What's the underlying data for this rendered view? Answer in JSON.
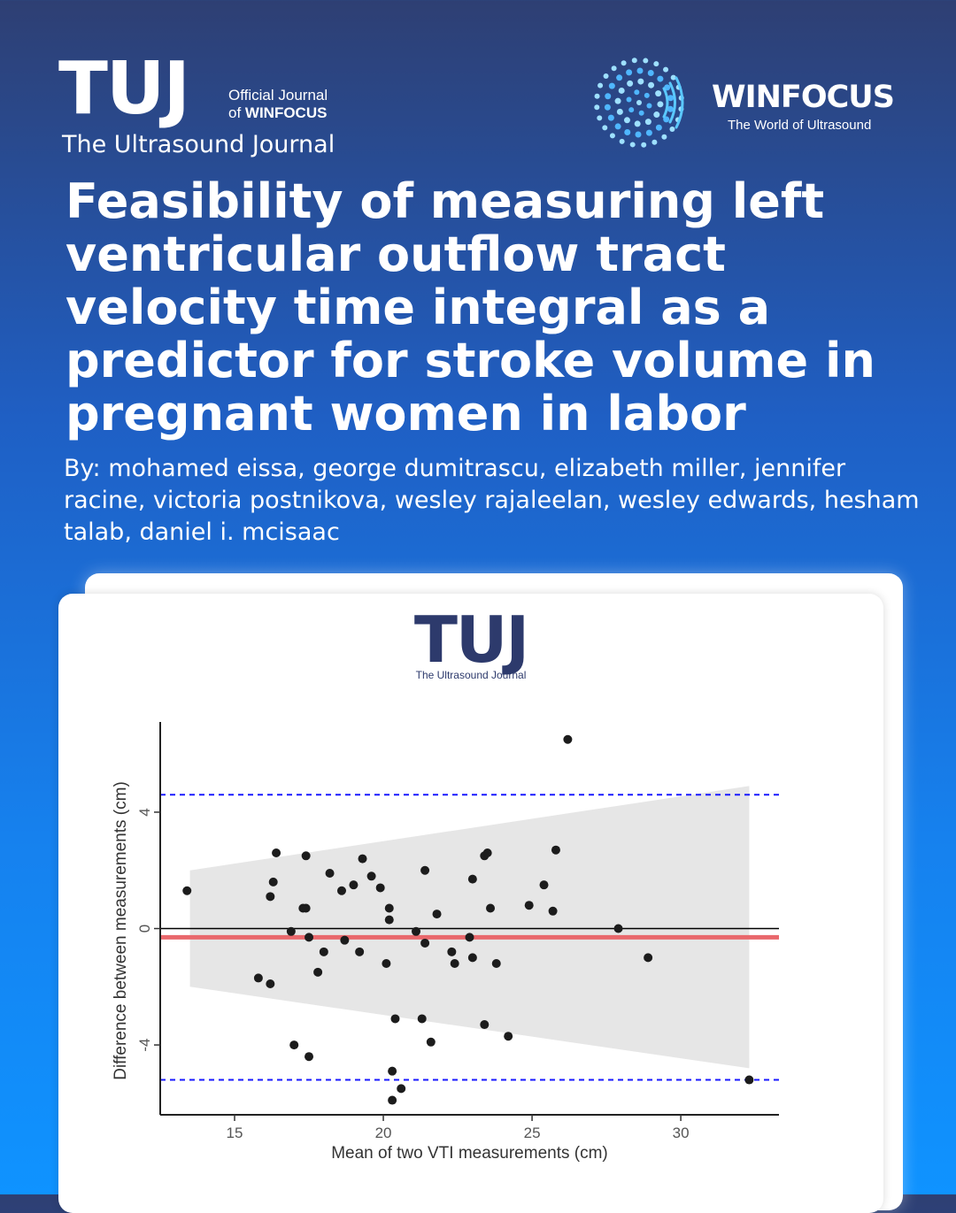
{
  "header": {
    "tuj_mark": "TUJ",
    "official_line1": "Official Journal",
    "official_line2_prefix": "of ",
    "official_line2_bold": "WINFOCUS",
    "tuj_subtitle": "The Ultrasound Journal",
    "winfocus_name": "WINFOCUS",
    "winfocus_tagline": "The World of Ultrasound"
  },
  "article": {
    "title": "Feasibility of measuring left ventricular outflow tract velocity time integral as a predictor for stroke volume in pregnant women in labor",
    "authors": "By: mohamed eissa, george dumitrascu, elizabeth miller, jennifer racine, victoria postnikova, wesley rajaleelan, wesley edwards, hesham talab, daniel i. mcisaac"
  },
  "card": {
    "logo_mark": "TUJ",
    "logo_subtitle": "The Ultrasound Journal"
  },
  "colors": {
    "loa": "#1a1aff",
    "bias": "#e9686c",
    "band": "#e6e6e6",
    "point": "#1c1c1c",
    "accent": "#2d3a6c"
  },
  "chart_data": {
    "type": "scatter",
    "title": "",
    "xlabel": "Mean of two VTI measurements (cm)",
    "ylabel": "Difference between measurements (cm)",
    "xlim": [
      12.5,
      33.3
    ],
    "ylim": [
      -6.4,
      7.1
    ],
    "xticks": [
      15,
      20,
      25,
      30
    ],
    "yticks": [
      -4,
      0,
      4
    ],
    "grid": false,
    "zero_line": 0,
    "bias": -0.3,
    "upper_loa": 4.6,
    "lower_loa": -5.2,
    "confidence_band": {
      "x": [
        13.5,
        32.3
      ],
      "upper": [
        2.0,
        4.9
      ],
      "lower": [
        -2.0,
        -4.8
      ]
    },
    "points": [
      {
        "x": 13.4,
        "y": 1.3
      },
      {
        "x": 15.8,
        "y": -1.7
      },
      {
        "x": 16.2,
        "y": 1.1
      },
      {
        "x": 16.3,
        "y": 1.6
      },
      {
        "x": 16.2,
        "y": -1.9
      },
      {
        "x": 16.4,
        "y": 2.6
      },
      {
        "x": 16.9,
        "y": -0.1
      },
      {
        "x": 17.0,
        "y": -4.0
      },
      {
        "x": 17.3,
        "y": 0.7
      },
      {
        "x": 17.4,
        "y": 0.7
      },
      {
        "x": 17.5,
        "y": -0.3
      },
      {
        "x": 17.5,
        "y": -4.4
      },
      {
        "x": 17.4,
        "y": 2.5
      },
      {
        "x": 17.8,
        "y": -1.5
      },
      {
        "x": 18.0,
        "y": -0.8
      },
      {
        "x": 18.2,
        "y": 1.9
      },
      {
        "x": 18.6,
        "y": 1.3
      },
      {
        "x": 18.7,
        "y": -0.4
      },
      {
        "x": 19.0,
        "y": 1.5
      },
      {
        "x": 19.2,
        "y": -0.8
      },
      {
        "x": 19.3,
        "y": 2.4
      },
      {
        "x": 19.6,
        "y": 1.8
      },
      {
        "x": 19.9,
        "y": 1.4
      },
      {
        "x": 20.1,
        "y": -1.2
      },
      {
        "x": 20.2,
        "y": 0.7
      },
      {
        "x": 20.2,
        "y": 0.3
      },
      {
        "x": 20.3,
        "y": -4.9
      },
      {
        "x": 20.3,
        "y": -5.9
      },
      {
        "x": 20.4,
        "y": -3.1
      },
      {
        "x": 20.6,
        "y": -5.5
      },
      {
        "x": 21.1,
        "y": -0.1
      },
      {
        "x": 21.3,
        "y": -3.1
      },
      {
        "x": 21.4,
        "y": -0.5
      },
      {
        "x": 21.4,
        "y": 2.0
      },
      {
        "x": 21.6,
        "y": -3.9
      },
      {
        "x": 21.8,
        "y": 0.5
      },
      {
        "x": 22.3,
        "y": -0.8
      },
      {
        "x": 22.4,
        "y": -1.2
      },
      {
        "x": 22.9,
        "y": -0.3
      },
      {
        "x": 23.0,
        "y": 1.7
      },
      {
        "x": 23.0,
        "y": -1.0
      },
      {
        "x": 23.4,
        "y": 2.5
      },
      {
        "x": 23.4,
        "y": -3.3
      },
      {
        "x": 23.5,
        "y": 2.6
      },
      {
        "x": 23.6,
        "y": 0.7
      },
      {
        "x": 23.8,
        "y": -1.2
      },
      {
        "x": 24.2,
        "y": -3.7
      },
      {
        "x": 24.9,
        "y": 0.8
      },
      {
        "x": 25.4,
        "y": 1.5
      },
      {
        "x": 25.7,
        "y": 0.6
      },
      {
        "x": 25.8,
        "y": 2.7
      },
      {
        "x": 26.2,
        "y": 6.5
      },
      {
        "x": 27.9,
        "y": 0.0
      },
      {
        "x": 28.9,
        "y": -1.0
      },
      {
        "x": 32.3,
        "y": -5.2
      }
    ]
  }
}
